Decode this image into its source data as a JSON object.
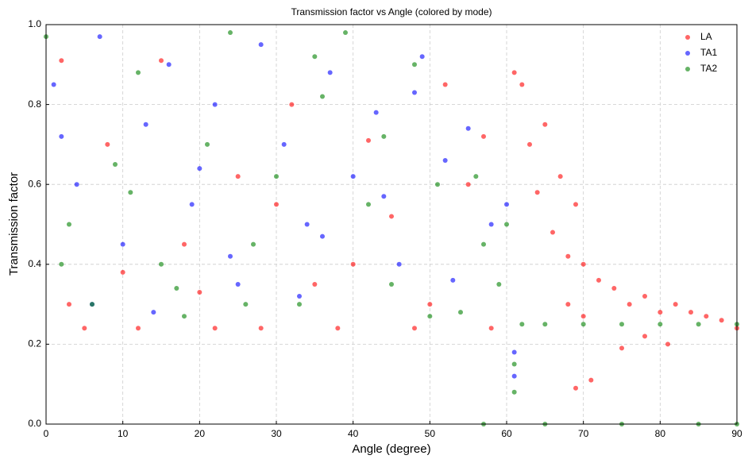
{
  "chart_data": {
    "type": "scatter",
    "title": "Transmission factor vs Angle (colored by mode)",
    "x_label": "Angle (degree)",
    "y_label": "Transmission factor",
    "xlim": [
      0,
      90
    ],
    "ylim": [
      0,
      1
    ],
    "xticks": [
      0,
      10,
      20,
      30,
      40,
      50,
      60,
      70,
      80,
      90
    ],
    "yticks": [
      {
        "value": 0,
        "label": "0.0"
      },
      0.2,
      0.4,
      0.6,
      0.8,
      {
        "value": 1,
        "label": "1.0"
      }
    ],
    "grid": true,
    "legend": "upper right",
    "series": [
      {
        "name": "LA",
        "color": "#ff0000",
        "x": [
          2,
          5,
          8,
          12,
          15,
          18,
          22,
          25,
          28,
          32,
          35,
          38,
          42,
          45,
          48,
          52,
          55,
          58,
          3,
          10,
          20,
          30,
          40,
          50,
          57,
          61,
          62,
          63,
          64,
          65,
          66,
          67,
          68,
          68,
          69,
          70,
          70,
          72,
          74,
          75,
          76,
          78,
          78,
          80,
          81,
          82,
          84,
          86,
          88,
          90,
          69,
          71
        ],
        "values": [
          0.91,
          0.24,
          0.7,
          0.24,
          0.91,
          0.45,
          0.24,
          0.62,
          0.24,
          0.8,
          0.35,
          0.24,
          0.71,
          0.52,
          0.24,
          0.85,
          0.6,
          0.24,
          0.3,
          0.38,
          0.33,
          0.55,
          0.4,
          0.3,
          0.72,
          0.88,
          0.85,
          0.7,
          0.58,
          0.75,
          0.48,
          0.62,
          0.42,
          0.3,
          0.55,
          0.4,
          0.27,
          0.36,
          0.34,
          0.19,
          0.3,
          0.32,
          0.22,
          0.28,
          0.2,
          0.3,
          0.28,
          0.27,
          0.26,
          0.24,
          0.09,
          0.11
        ]
      },
      {
        "name": "TA1",
        "color": "#0000ff",
        "x": [
          1,
          4,
          7,
          10,
          13,
          16,
          19,
          22,
          25,
          28,
          31,
          34,
          37,
          40,
          43,
          46,
          49,
          52,
          55,
          58,
          6,
          14,
          24,
          33,
          44,
          53,
          60,
          61,
          61,
          2,
          20,
          36,
          48
        ],
        "values": [
          0.85,
          0.6,
          0.97,
          0.45,
          0.75,
          0.9,
          0.55,
          0.8,
          0.35,
          0.95,
          0.7,
          0.5,
          0.88,
          0.62,
          0.78,
          0.4,
          0.92,
          0.66,
          0.74,
          0.5,
          0.3,
          0.28,
          0.42,
          0.32,
          0.57,
          0.36,
          0.55,
          0.18,
          0.12,
          0.72,
          0.64,
          0.47,
          0.83
        ]
      },
      {
        "name": "TA2",
        "color": "#008000",
        "x": [
          0,
          3,
          6,
          9,
          12,
          15,
          18,
          21,
          24,
          27,
          30,
          33,
          36,
          39,
          42,
          45,
          48,
          51,
          54,
          57,
          59,
          60,
          2,
          11,
          17,
          26,
          35,
          44,
          50,
          56,
          61,
          61,
          62,
          65,
          70,
          75,
          80,
          85,
          90,
          57,
          65,
          75,
          85,
          90
        ],
        "values": [
          0.97,
          0.5,
          0.3,
          0.65,
          0.88,
          0.4,
          0.27,
          0.7,
          0.98,
          0.45,
          0.62,
          0.3,
          0.82,
          0.98,
          0.55,
          0.35,
          0.9,
          0.6,
          0.28,
          0.45,
          0.35,
          0.5,
          0.4,
          0.58,
          0.34,
          0.3,
          0.92,
          0.72,
          0.27,
          0.62,
          0.08,
          0.15,
          0.25,
          0.25,
          0.25,
          0.25,
          0.25,
          0.25,
          0.25,
          0,
          0,
          0,
          0,
          0
        ]
      }
    ]
  }
}
